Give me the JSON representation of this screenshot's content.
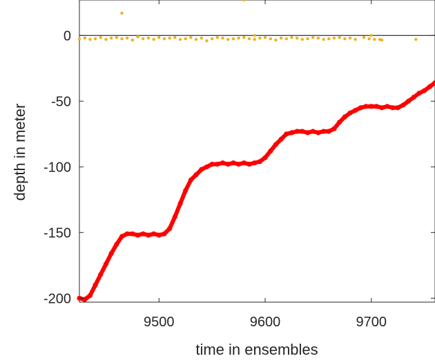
{
  "chart_data": {
    "type": "scatter",
    "title": "",
    "xlabel": "time in ensembles",
    "ylabel": "depth in meter",
    "xlim": [
      9425,
      9760
    ],
    "ylim": [
      -203,
      27
    ],
    "xticks": [
      9500,
      9600,
      9700
    ],
    "yticks": [
      0,
      -50,
      -100,
      -150,
      -200
    ],
    "xtick_labels": [
      "9500",
      "9600",
      "9700"
    ],
    "ytick_labels": [
      "0",
      "-50",
      "-100",
      "-150",
      "-200"
    ],
    "grid": false,
    "legend": "none",
    "reference_line_y": 0,
    "series": [
      {
        "color": "#ff0000",
        "style": "thick-points",
        "x": [
          9425,
          9430,
          9435,
          9440,
          9445,
          9450,
          9455,
          9460,
          9465,
          9470,
          9475,
          9480,
          9485,
          9490,
          9495,
          9500,
          9505,
          9510,
          9515,
          9520,
          9525,
          9530,
          9535,
          9540,
          9545,
          9550,
          9555,
          9560,
          9565,
          9570,
          9575,
          9580,
          9585,
          9590,
          9595,
          9600,
          9605,
          9610,
          9615,
          9620,
          9625,
          9630,
          9635,
          9640,
          9645,
          9650,
          9655,
          9660,
          9665,
          9670,
          9675,
          9680,
          9685,
          9690,
          9695,
          9700,
          9705,
          9710,
          9715,
          9720,
          9725,
          9730,
          9735,
          9740,
          9745,
          9750,
          9755,
          9760
        ],
        "y": [
          -200,
          -201,
          -198,
          -190,
          -182,
          -174,
          -166,
          -159,
          -153,
          -151,
          -151,
          -152,
          -151,
          -152,
          -151,
          -152,
          -151,
          -147,
          -138,
          -128,
          -118,
          -110,
          -106,
          -102,
          -100,
          -98,
          -98,
          -97,
          -98,
          -97,
          -98,
          -97,
          -98,
          -97,
          -96,
          -93,
          -88,
          -83,
          -79,
          -75,
          -74,
          -73,
          -73,
          -74,
          -73,
          -74,
          -73,
          -73,
          -71,
          -66,
          -62,
          -59,
          -57,
          -55,
          -54,
          -54,
          -54,
          -55,
          -54,
          -55,
          -55,
          -53,
          -50,
          -47,
          -44,
          -42,
          -39,
          -36
        ]
      },
      {
        "color": "#edb120",
        "style": "small-points",
        "x": [
          9425,
          9430,
          9435,
          9440,
          9445,
          9450,
          9455,
          9460,
          9465,
          9470,
          9475,
          9480,
          9485,
          9490,
          9495,
          9500,
          9505,
          9510,
          9515,
          9520,
          9525,
          9530,
          9535,
          9540,
          9545,
          9550,
          9555,
          9560,
          9565,
          9570,
          9575,
          9580,
          9585,
          9590,
          9595,
          9600,
          9605,
          9610,
          9615,
          9620,
          9625,
          9630,
          9635,
          9640,
          9645,
          9650,
          9655,
          9660,
          9665,
          9670,
          9675,
          9680,
          9685,
          9693,
          9698,
          9703,
          9708,
          9710,
          9742,
          9465,
          9580,
          9590,
          9700
        ],
        "y": [
          -2.5,
          -2,
          -3,
          -2.5,
          -1.5,
          -3,
          -2,
          -1.5,
          -2.5,
          -2,
          -3.5,
          -1,
          -2.5,
          -2,
          -3,
          -1.5,
          -2.5,
          -2,
          -1.5,
          -3,
          -2.5,
          -1.5,
          -3,
          -2,
          -4,
          -2.5,
          -1.5,
          -2,
          -3,
          -2.5,
          -2,
          -1.5,
          -2.5,
          -3,
          -2,
          -1.5,
          -2.5,
          -3.5,
          -2,
          -2.5,
          -1.5,
          -2,
          -3,
          -2.5,
          -1.5,
          -2,
          -3,
          -2.5,
          -2,
          -1.5,
          -2.5,
          -2,
          -3,
          -1.5,
          -2.5,
          -3,
          -3,
          -3.5,
          -3,
          17,
          27,
          0,
          0
        ]
      }
    ]
  }
}
